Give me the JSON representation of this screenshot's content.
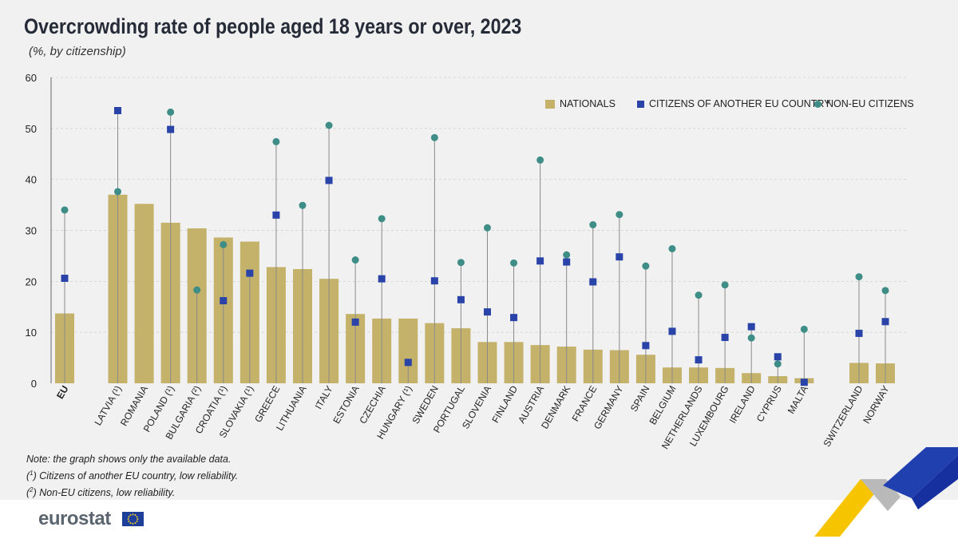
{
  "header": {
    "title": "Overcrowding rate of people aged 18 years or over, 2023",
    "subtitle": "(%, by citizenship)"
  },
  "legend": {
    "nationals": "NATIONALS",
    "eu_citizens": "CITIZENS OF ANOTHER EU COUNTRY",
    "non_eu": "NON-EU CITIZENS"
  },
  "colors": {
    "nationals": "#c4b16a",
    "eu_citizens": "#2943a8",
    "non_eu": "#3f8d87",
    "stem": "#8a8a8a"
  },
  "notes": {
    "line1": "Note: the graph shows only the available data.",
    "line2_mark": "1",
    "line2_text": " Citizens of another EU country, low reliability.",
    "line3_mark": "2",
    "line3_text": " Non-EU citizens, low reliability."
  },
  "footer": {
    "logo": "eurostat"
  },
  "chart_data": {
    "type": "bar",
    "ylim": [
      0,
      60
    ],
    "yticks": [
      0,
      10,
      20,
      30,
      40,
      50,
      60
    ],
    "grid": true,
    "legend_position": "top-right",
    "categories": [
      "EU",
      "LATVIA (¹)",
      "ROMANIA",
      "POLAND (¹)",
      "BULGARIA (²)",
      "CROATIA (¹)",
      "SLOVAKIA (¹)",
      "GREECE",
      "LITHUANIA",
      "ITALY",
      "ESTONIA",
      "CZECHIA",
      "HUNGARY (¹)",
      "SWEDEN",
      "PORTUGAL",
      "SLOVENIA",
      "FINLAND",
      "AUSTRIA",
      "DENMARK",
      "FRANCE",
      "GERMANY",
      "SPAIN",
      "BELGIUM",
      "NETHERLANDS",
      "LUXEMBOURG",
      "IRELAND",
      "CYPRUS",
      "MALTA",
      "SWITZERLAND",
      "NORWAY"
    ],
    "series": [
      {
        "name": "NATIONALS",
        "kind": "bar",
        "values": [
          13.7,
          37.0,
          35.2,
          31.5,
          30.4,
          28.6,
          27.8,
          22.8,
          22.4,
          20.5,
          13.6,
          12.7,
          12.7,
          11.8,
          10.8,
          8.1,
          8.1,
          7.5,
          7.2,
          6.6,
          6.5,
          5.6,
          3.1,
          3.1,
          3.0,
          2.0,
          1.4,
          1.0,
          4.0,
          3.9
        ]
      },
      {
        "name": "CITIZENS OF ANOTHER EU COUNTRY",
        "kind": "square",
        "values": [
          20.6,
          53.5,
          null,
          49.8,
          null,
          16.2,
          21.6,
          33.0,
          null,
          39.8,
          12.0,
          20.5,
          4.1,
          20.1,
          16.4,
          14.0,
          12.9,
          24.0,
          23.8,
          19.9,
          24.8,
          7.4,
          10.2,
          4.6,
          9.0,
          11.1,
          5.2,
          0.2,
          9.8,
          12.1
        ]
      },
      {
        "name": "NON-EU CITIZENS",
        "kind": "dot",
        "values": [
          34.0,
          37.6,
          null,
          53.2,
          18.3,
          27.2,
          null,
          47.4,
          34.9,
          50.6,
          24.2,
          32.3,
          null,
          48.2,
          23.7,
          30.5,
          23.6,
          43.8,
          25.2,
          31.1,
          33.1,
          23.0,
          26.4,
          17.3,
          19.3,
          8.9,
          3.8,
          10.6,
          20.9,
          18.2
        ]
      }
    ]
  }
}
